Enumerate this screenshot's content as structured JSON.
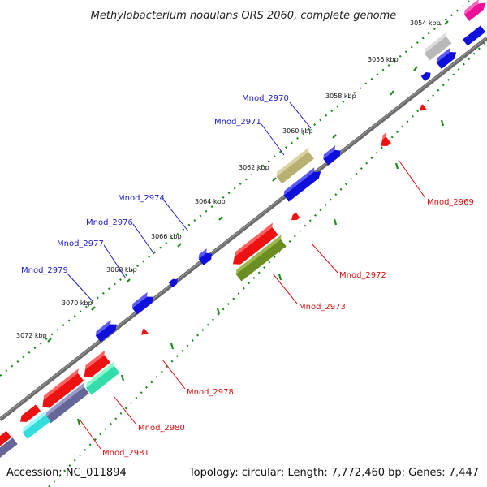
{
  "title": "Methylobacterium nodulans ORS 2060, complete genome",
  "footer": {
    "accession": "Accession: NC_011894",
    "summary": "Topology: circular; Length: 7,772,460 bp; Genes: 7,447"
  },
  "ticks": [
    "3054 kbp",
    "3056 kbp",
    "3058 kbp",
    "3060 kbp",
    "3062 kbp",
    "3064 kbp",
    "3066 kbp",
    "3068 kbp",
    "3070 kbp",
    "3072 kbp"
  ],
  "gene_labels": {
    "mnod_2970": "Mnod_2970",
    "mnod_2971": "Mnod_2971",
    "mnod_2974": "Mnod_2974",
    "mnod_2976": "Mnod_2976",
    "mnod_2977": "Mnod_2977",
    "mnod_2979": "Mnod_2979",
    "mnod_2969": "Mnod_2969",
    "mnod_2972": "Mnod_2972",
    "mnod_2973": "Mnod_2973",
    "mnod_2978": "Mnod_2978",
    "mnod_2980": "Mnod_2980",
    "mnod_2981": "Mnod_2981"
  },
  "colors": {
    "forward": "#1010dd",
    "reverse": "#ee1111",
    "label_forward": "#1a1acc",
    "label_reverse": "#dd1111",
    "backbone": "#6b6b6b",
    "tick_dots": "#1a8a1a",
    "olive": "#b8b070",
    "dark_olive": "#6b8e23",
    "gray_gene": "#b8b8b8",
    "magenta_gene": "#ee1199",
    "teal_gene": "#33ddaa",
    "cyan_gene": "#33dddd",
    "purple_gene": "#666699"
  }
}
